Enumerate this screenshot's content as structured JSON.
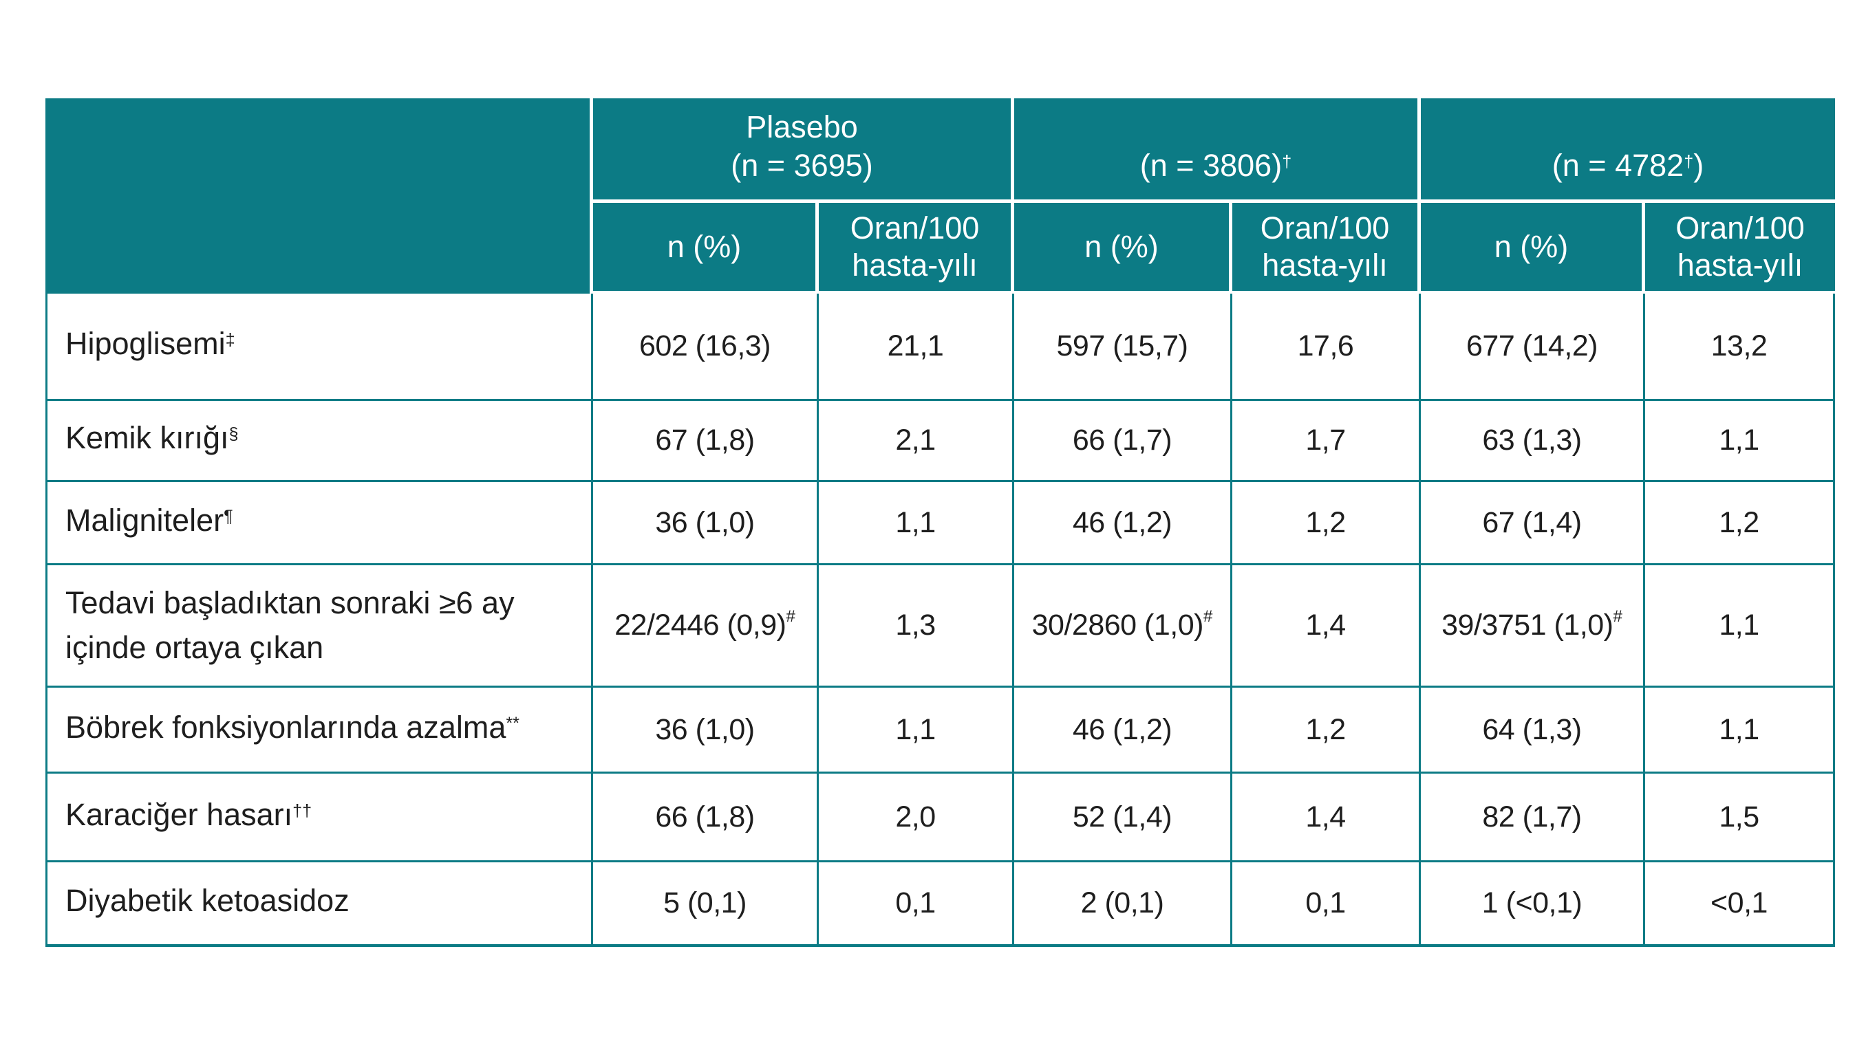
{
  "colors": {
    "teal": "#0c7b85",
    "header_text": "#ffffff",
    "body_text": "#1e1e1e",
    "background": "#ffffff"
  },
  "header": {
    "corner": "",
    "groups": [
      {
        "line1": "Plasebo",
        "pre": "(n = 3695)",
        "sup": "",
        "post": ""
      },
      {
        "line1": "",
        "pre": "(n = 3806)",
        "sup": "†",
        "post": ""
      },
      {
        "line1": "",
        "pre": "(n = 4782",
        "sup": "†",
        "post": ")"
      }
    ],
    "subheaders": [
      {
        "line1": "n (%)",
        "line2": ""
      },
      {
        "line1": "Oran/100",
        "line2": "hasta-yılı"
      },
      {
        "line1": "n (%)",
        "line2": ""
      },
      {
        "line1": "Oran/100",
        "line2": "hasta-yılı"
      },
      {
        "line1": "n (%)",
        "line2": ""
      },
      {
        "line1": "Oran/100",
        "line2": "hasta-yılı"
      }
    ]
  },
  "rows": [
    {
      "label": "Hipoglisemi",
      "sup": "‡",
      "label2": "",
      "cells": [
        {
          "v": "602 (16,3)",
          "sup": ""
        },
        {
          "v": "21,1",
          "sup": ""
        },
        {
          "v": "597 (15,7)",
          "sup": ""
        },
        {
          "v": "17,6",
          "sup": ""
        },
        {
          "v": "677 (14,2)",
          "sup": ""
        },
        {
          "v": "13,2",
          "sup": ""
        }
      ]
    },
    {
      "label": "Kemik kırığı",
      "sup": "§",
      "label2": "",
      "cells": [
        {
          "v": "67 (1,8)",
          "sup": ""
        },
        {
          "v": "2,1",
          "sup": ""
        },
        {
          "v": "66 (1,7)",
          "sup": ""
        },
        {
          "v": "1,7",
          "sup": ""
        },
        {
          "v": "63 (1,3)",
          "sup": ""
        },
        {
          "v": "1,1",
          "sup": ""
        }
      ]
    },
    {
      "label": "Maligniteler",
      "sup": "¶",
      "label2": "",
      "cells": [
        {
          "v": "36 (1,0)",
          "sup": ""
        },
        {
          "v": "1,1",
          "sup": ""
        },
        {
          "v": "46 (1,2)",
          "sup": ""
        },
        {
          "v": "1,2",
          "sup": ""
        },
        {
          "v": "67 (1,4)",
          "sup": ""
        },
        {
          "v": "1,2",
          "sup": ""
        }
      ]
    },
    {
      "label": "Tedavi başladıktan sonraki ≥6 ay",
      "sup": "",
      "label2": "içinde ortaya çıkan",
      "cells": [
        {
          "v": "22/2446 (0,9)",
          "sup": "#"
        },
        {
          "v": "1,3",
          "sup": ""
        },
        {
          "v": "30/2860 (1,0)",
          "sup": "#"
        },
        {
          "v": "1,4",
          "sup": ""
        },
        {
          "v": "39/3751 (1,0)",
          "sup": "#"
        },
        {
          "v": "1,1",
          "sup": ""
        }
      ]
    },
    {
      "label": "Böbrek fonksiyonlarında azalma",
      "sup": "**",
      "label2": "",
      "cells": [
        {
          "v": "36 (1,0)",
          "sup": ""
        },
        {
          "v": "1,1",
          "sup": ""
        },
        {
          "v": "46 (1,2)",
          "sup": ""
        },
        {
          "v": "1,2",
          "sup": ""
        },
        {
          "v": "64 (1,3)",
          "sup": ""
        },
        {
          "v": "1,1",
          "sup": ""
        }
      ]
    },
    {
      "label": "Karaciğer hasarı",
      "sup": "††",
      "label2": "",
      "cells": [
        {
          "v": "66 (1,8)",
          "sup": ""
        },
        {
          "v": "2,0",
          "sup": ""
        },
        {
          "v": "52 (1,4)",
          "sup": ""
        },
        {
          "v": "1,4",
          "sup": ""
        },
        {
          "v": "82 (1,7)",
          "sup": ""
        },
        {
          "v": "1,5",
          "sup": ""
        }
      ]
    },
    {
      "label": "Diyabetik ketoasidoz",
      "sup": "",
      "label2": "",
      "cells": [
        {
          "v": "5 (0,1)",
          "sup": ""
        },
        {
          "v": "0,1",
          "sup": ""
        },
        {
          "v": "2 (0,1)",
          "sup": ""
        },
        {
          "v": "0,1",
          "sup": ""
        },
        {
          "v": "1 (<0,1)",
          "sup": ""
        },
        {
          "v": "<0,1",
          "sup": ""
        }
      ]
    }
  ]
}
